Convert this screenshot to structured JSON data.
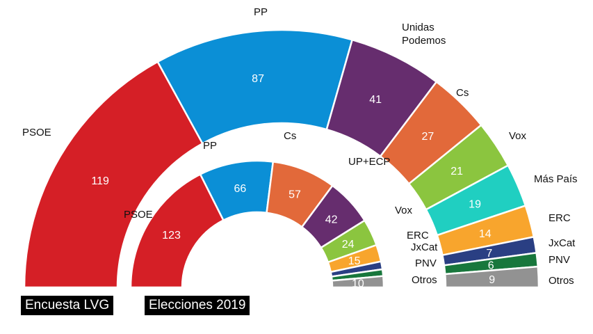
{
  "chart_data": [
    {
      "type": "parliament",
      "title": "Encuesta LVG",
      "categories": [
        "PSOE",
        "PP",
        "Unidas Podemos",
        "Cs",
        "Vox",
        "Más País",
        "ERC",
        "JxCat",
        "PNV",
        "Otros"
      ],
      "values": [
        119,
        87,
        41,
        27,
        21,
        19,
        14,
        7,
        6,
        9
      ],
      "colors": [
        "#d51f26",
        "#0b8fd6",
        "#662d6e",
        "#e2693a",
        "#8bc53f",
        "#20cfc1",
        "#f8a52d",
        "#2a3f83",
        "#18773c",
        "#929292"
      ],
      "value_labels": [
        "119",
        "87",
        "41",
        "27",
        "21",
        "19",
        "14",
        "7",
        "6",
        "9"
      ]
    },
    {
      "type": "parliament",
      "title": "Elecciones 2019",
      "categories": [
        "PSOE",
        "PP",
        "Cs",
        "UP+ECP",
        "Vox",
        "ERC",
        "JxCat",
        "PNV",
        "Otros"
      ],
      "values": [
        123,
        66,
        57,
        42,
        24,
        15,
        7,
        6,
        10
      ],
      "colors": [
        "#d51f26",
        "#0b8fd6",
        "#e2693a",
        "#662d6e",
        "#8bc53f",
        "#f8a52d",
        "#2a3f83",
        "#18773c",
        "#929292"
      ],
      "value_labels": [
        "123",
        "66",
        "57",
        "42",
        "24",
        "15",
        "",
        "",
        "10"
      ]
    }
  ]
}
